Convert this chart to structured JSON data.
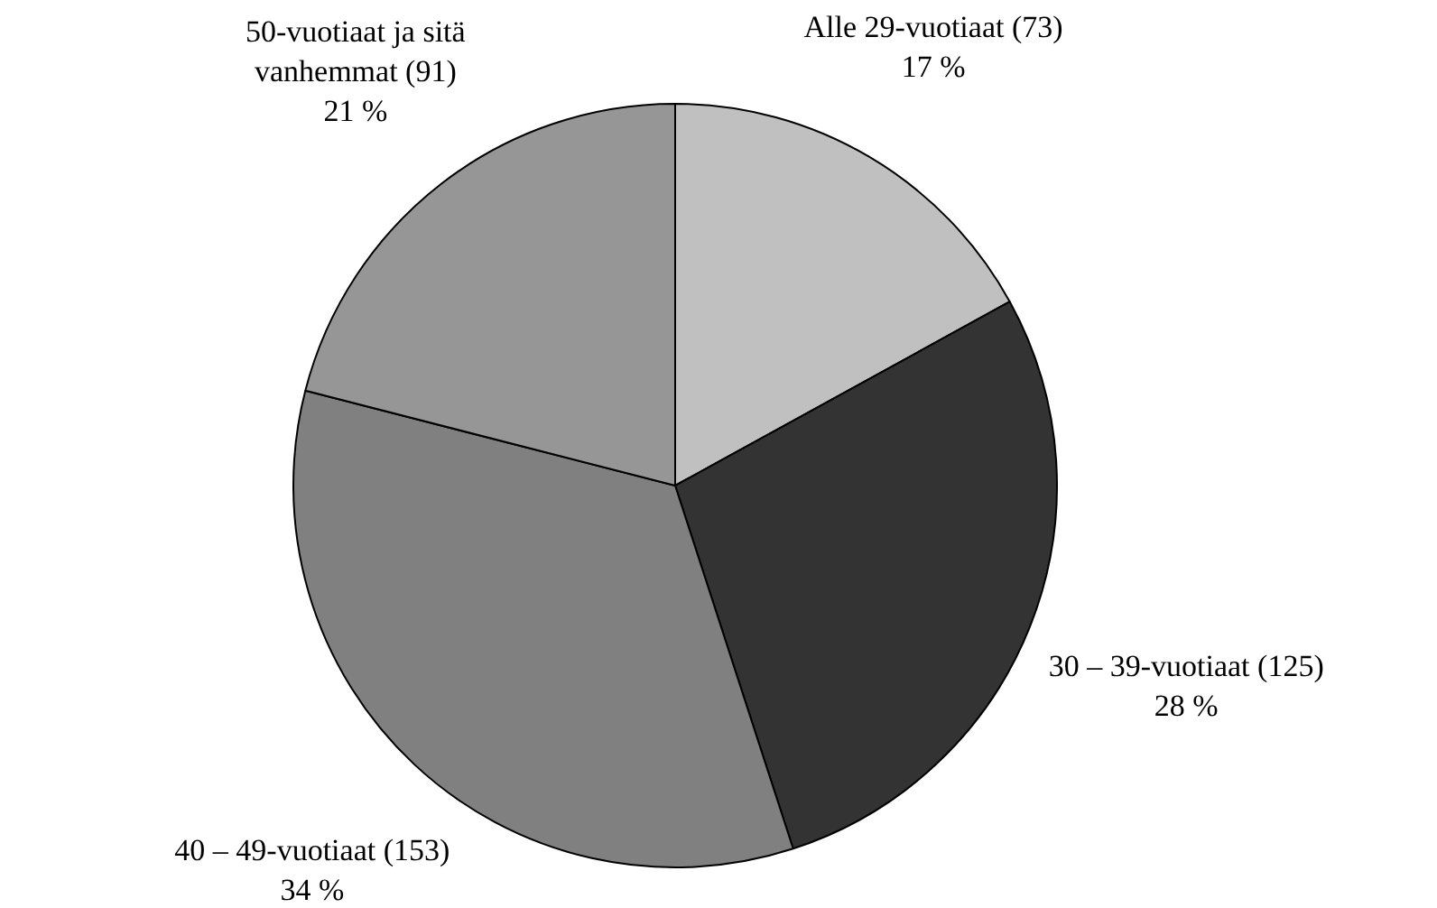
{
  "chart_data": {
    "type": "pie",
    "categories": [
      "Alle 29-vuotiaat (73)",
      "30 – 39-vuotiaat (125)",
      "40 – 49-vuotiaat (153)",
      "50-vuotiaat ja sitä vanhemmat (91)"
    ],
    "values": [
      17,
      28,
      34,
      21
    ],
    "value_labels": [
      "17 %",
      "28 %",
      "34 %",
      "21 %"
    ],
    "colors": [
      "#c0c0c0",
      "#333333",
      "#808080",
      "#969696"
    ],
    "legend": false
  }
}
